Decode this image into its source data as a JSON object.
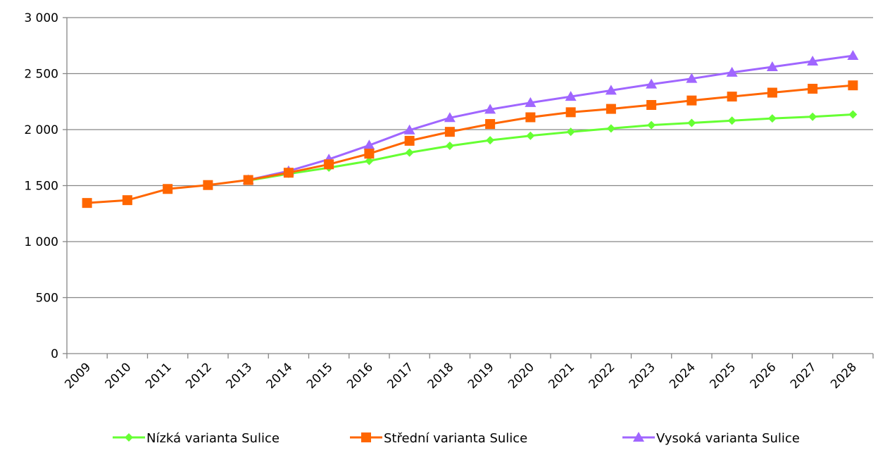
{
  "chart_data": {
    "type": "line",
    "title": "",
    "xlabel": "",
    "ylabel": "",
    "x": [
      "2009",
      "2010",
      "2011",
      "2012",
      "2013",
      "2014",
      "2015",
      "2016",
      "2017",
      "2018",
      "2019",
      "2020",
      "2021",
      "2022",
      "2023",
      "2024",
      "2025",
      "2026",
      "2027",
      "2028"
    ],
    "ylim": [
      0,
      3000
    ],
    "yticks": [
      0,
      500,
      1000,
      1500,
      2000,
      2500,
      3000
    ],
    "ytick_labels": [
      "0",
      "500",
      "1 000",
      "1 500",
      "2 000",
      "2 500",
      "3 000"
    ],
    "grid": "horizontal",
    "legend_position": "bottom",
    "series": [
      {
        "name": "Nízká varianta Sulice",
        "color": "#66ff33",
        "marker": "diamond",
        "values": [
          null,
          null,
          null,
          null,
          1545,
          1605,
          1660,
          1720,
          1795,
          1855,
          1905,
          1945,
          1980,
          2010,
          2040,
          2060,
          2080,
          2100,
          2115,
          2135
        ]
      },
      {
        "name": "Střední varianta Sulice",
        "color": "#ff6600",
        "marker": "square",
        "values": [
          1345,
          1370,
          1470,
          1505,
          1550,
          1615,
          1690,
          1785,
          1900,
          1980,
          2050,
          2110,
          2155,
          2185,
          2220,
          2260,
          2295,
          2330,
          2365,
          2395
        ]
      },
      {
        "name": "Vysoká varianta Sulice",
        "color": "#a066ff",
        "marker": "triangle",
        "values": [
          null,
          null,
          null,
          null,
          1550,
          1630,
          1735,
          1860,
          1995,
          2105,
          2180,
          2240,
          2295,
          2350,
          2405,
          2455,
          2510,
          2560,
          2610,
          2660
        ]
      }
    ]
  }
}
